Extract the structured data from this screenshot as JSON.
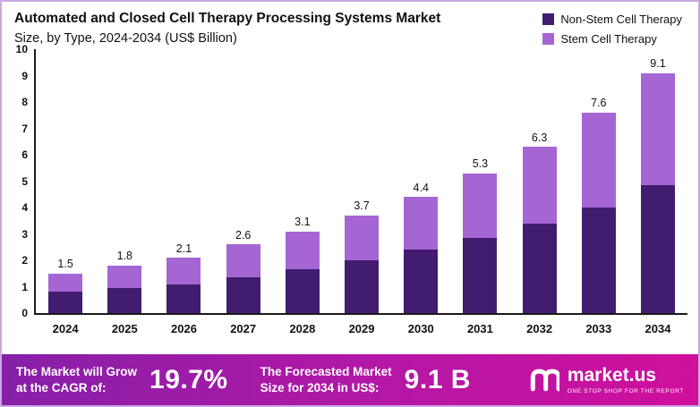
{
  "title": "Automated and Closed Cell Therapy Processing Systems Market",
  "subtitle": "Size, by Type, 2024-2034 (US$ Billion)",
  "legend": [
    {
      "label": "Non-Stem Cell Therapy",
      "color": "#421c6e"
    },
    {
      "label": "Stem Cell Therapy",
      "color": "#a566d4"
    }
  ],
  "chart_data": {
    "type": "bar",
    "stacked": true,
    "title": "Automated and Closed Cell Therapy Processing Systems Market Size, by Type, 2024-2034 (US$ Billion)",
    "categories": [
      "2024",
      "2025",
      "2026",
      "2027",
      "2028",
      "2029",
      "2030",
      "2031",
      "2032",
      "2033",
      "2034"
    ],
    "series": [
      {
        "name": "Non-Stem Cell Therapy",
        "color": "#421c6e",
        "values": [
          0.8,
          0.95,
          1.1,
          1.35,
          1.65,
          2.0,
          2.4,
          2.85,
          3.4,
          4.0,
          4.85
        ]
      },
      {
        "name": "Stem Cell Therapy",
        "color": "#a566d4",
        "values": [
          0.7,
          0.85,
          1.0,
          1.25,
          1.45,
          1.7,
          2.0,
          2.45,
          2.9,
          3.6,
          4.25
        ]
      }
    ],
    "totals": [
      1.5,
      1.8,
      2.1,
      2.6,
      3.1,
      3.7,
      4.4,
      5.3,
      6.3,
      7.6,
      9.1
    ],
    "xlabel": "",
    "ylabel": "",
    "ylim": [
      0,
      10
    ],
    "yticks": [
      0,
      1,
      2,
      3,
      4,
      5,
      6,
      7,
      8,
      9,
      10
    ],
    "grid": false,
    "legend_position": "top-right"
  },
  "footer": {
    "cagr_label": "The Market will Grow\nat the CAGR of:",
    "cagr_value": "19.7%",
    "forecast_label": "The Forecasted Market\nSize for 2034 in US$:",
    "forecast_value": "9.1 B",
    "brand": "market.us",
    "brand_tagline": "ONE STOP SHOP FOR THE REPORT"
  }
}
